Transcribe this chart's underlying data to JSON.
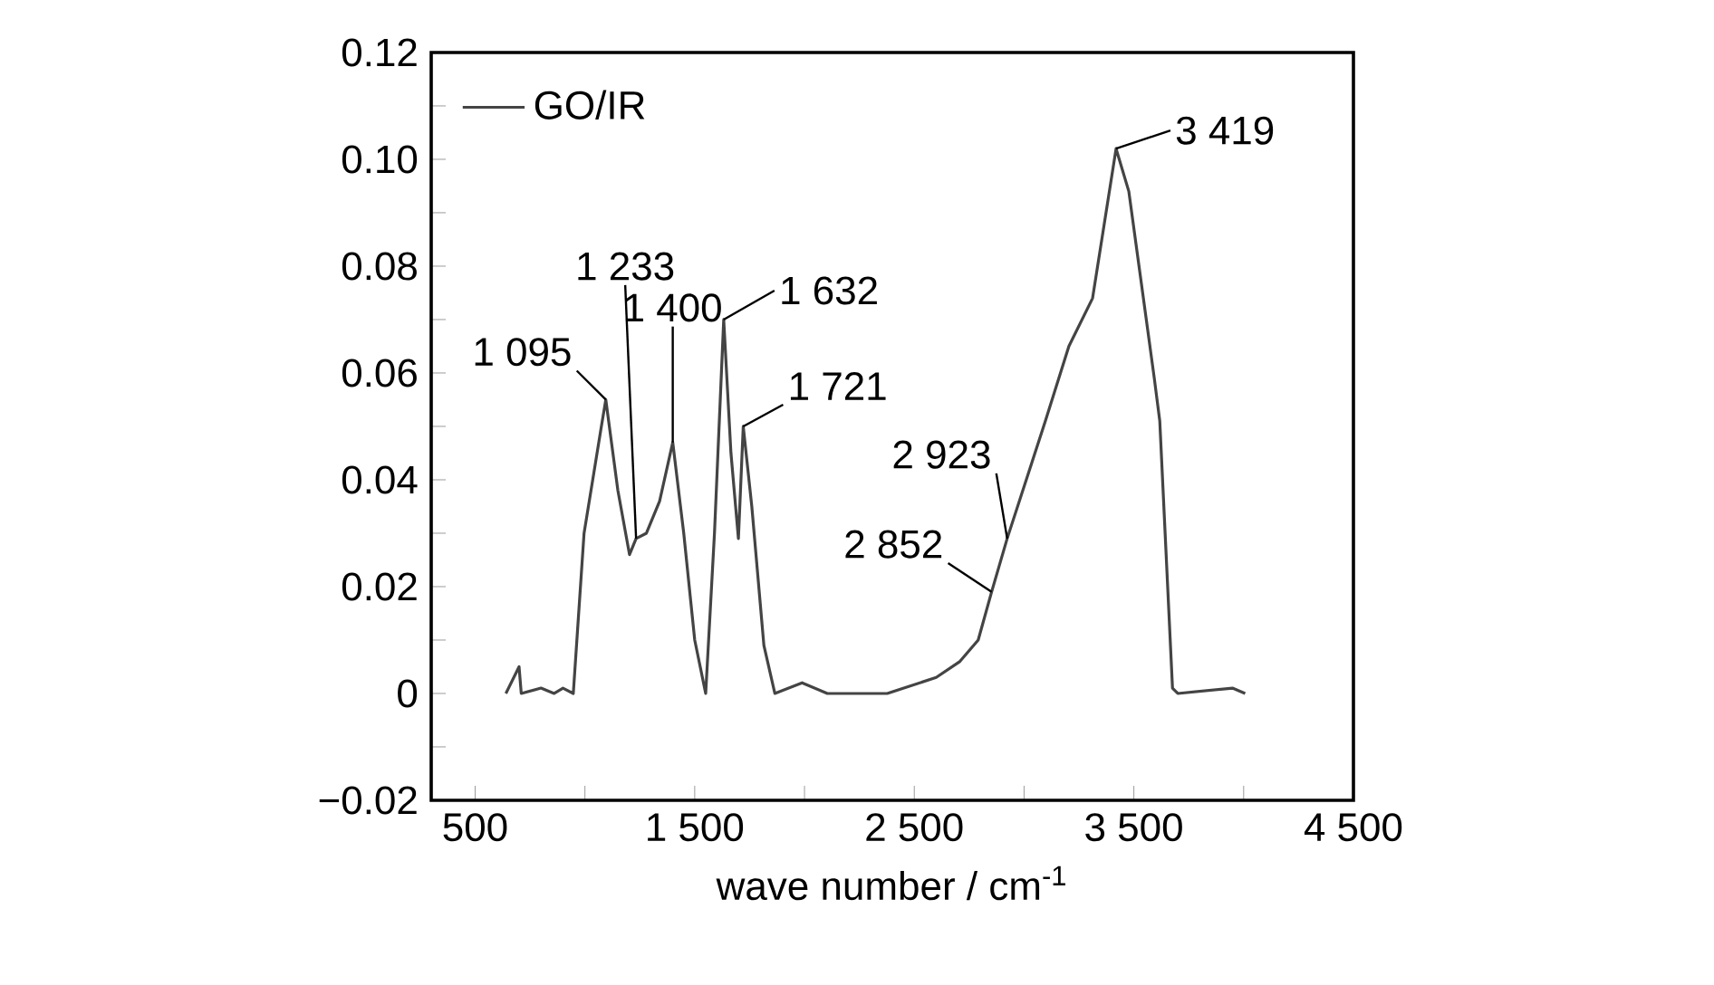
{
  "chart_data": {
    "type": "line",
    "xlabel": "wave number / cm$^{-1}$",
    "x": [
      640,
      700,
      710,
      800,
      860,
      900,
      947,
      996,
      1071,
      1095,
      1150,
      1203,
      1233,
      1280,
      1340,
      1400,
      1450,
      1500,
      1550,
      1590,
      1632,
      1665,
      1699,
      1721,
      1760,
      1815,
      1865,
      1989,
      2104,
      2377,
      2600,
      2708,
      2791,
      2852,
      2923,
      3097,
      3204,
      3312,
      3419,
      3477,
      3593,
      3618,
      3676,
      3700,
      3949,
      4007
    ],
    "series": [
      {
        "name": "GO/IR",
        "color": "#444444",
        "values": [
          0,
          0.005,
          0,
          0.001,
          0,
          0.001,
          0,
          0.03,
          0.049,
          0.055,
          0.038,
          0.026,
          0.029,
          0.03,
          0.036,
          0.047,
          0.03,
          0.01,
          0,
          0.03,
          0.07,
          0.045,
          0.029,
          0.05,
          0.035,
          0.009,
          0,
          0.002,
          0,
          0,
          0.003,
          0.006,
          0.01,
          0.019,
          0.029,
          0.051,
          0.065,
          0.074,
          0.102,
          0.094,
          0.059,
          0.051,
          0.001,
          0,
          0.001,
          0
        ]
      }
    ],
    "xlim": [
      300,
      4500
    ],
    "xticks": [
      {
        "value": 500,
        "label": "500"
      },
      {
        "value": 1000,
        "label": null
      },
      {
        "value": 1500,
        "label": "1 500"
      },
      {
        "value": 2000,
        "label": null
      },
      {
        "value": 2500,
        "label": "2 500"
      },
      {
        "value": 3000,
        "label": null
      },
      {
        "value": 3500,
        "label": "3 500"
      },
      {
        "value": 4000,
        "label": null
      },
      {
        "value": 4500,
        "label": "4 500"
      }
    ],
    "ylim": [
      -0.02,
      0.12
    ],
    "yticks": [
      {
        "value": -0.02,
        "label": "−0.02"
      },
      {
        "value": -0.01,
        "label": null
      },
      0,
      {
        "value": 0.01,
        "label": null
      },
      0.02,
      {
        "value": 0.03,
        "label": null
      },
      0.04,
      {
        "value": 0.05,
        "label": null
      },
      0.06,
      {
        "value": 0.07,
        "label": null
      },
      0.08,
      {
        "value": 0.09,
        "label": null
      },
      {
        "value": 0.1,
        "label": "0.10"
      },
      {
        "value": 0.11,
        "label": null
      },
      0.12
    ],
    "legend": "top left",
    "annotations": [
      {
        "text": "1 095",
        "x": 1095,
        "y": 0.055
      },
      {
        "text": "1 233",
        "x": 1233,
        "y": 0.029
      },
      {
        "text": "1 400",
        "x": 1400,
        "y": 0.047
      },
      {
        "text": "1 632",
        "x": 1632,
        "y": 0.07
      },
      {
        "text": "1 721",
        "x": 1721,
        "y": 0.05
      },
      {
        "text": "2 923",
        "x": 2923,
        "y": 0.029
      },
      {
        "text": "2 852",
        "x": 2852,
        "y": 0.019
      },
      {
        "text": "3 419",
        "x": 3419,
        "y": 0.102
      }
    ]
  }
}
